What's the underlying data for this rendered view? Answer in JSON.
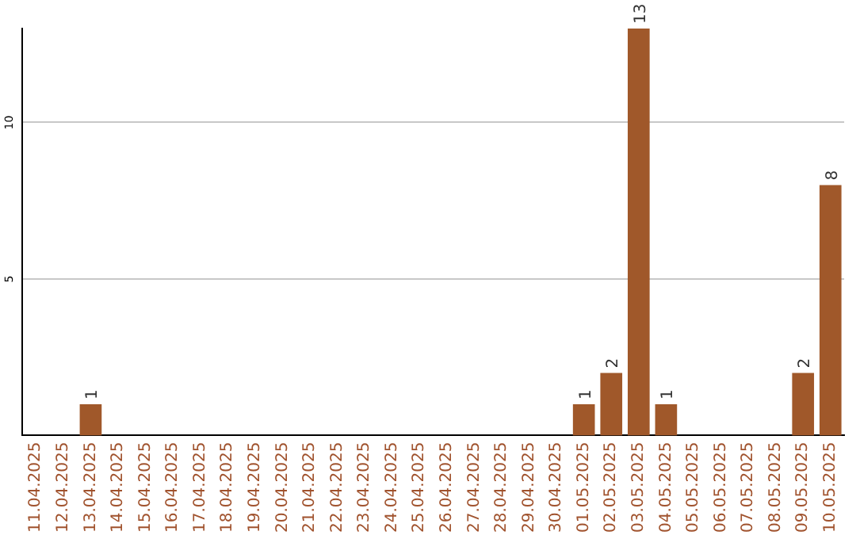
{
  "chart_data": {
    "type": "bar",
    "categories": [
      "11.04.2025",
      "12.04.2025",
      "13.04.2025",
      "14.04.2025",
      "15.04.2025",
      "16.04.2025",
      "17.04.2025",
      "18.04.2025",
      "19.04.2025",
      "20.04.2025",
      "21.04.2025",
      "22.04.2025",
      "23.04.2025",
      "24.04.2025",
      "25.04.2025",
      "26.04.2025",
      "27.04.2025",
      "28.04.2025",
      "29.04.2025",
      "30.04.2025",
      "01.05.2025",
      "02.05.2025",
      "03.05.2025",
      "04.05.2025",
      "05.05.2025",
      "06.05.2025",
      "07.05.2025",
      "08.05.2025",
      "09.05.2025",
      "10.05.2025"
    ],
    "values": [
      0,
      0,
      1,
      0,
      0,
      0,
      0,
      0,
      0,
      0,
      0,
      0,
      0,
      0,
      0,
      0,
      0,
      0,
      0,
      0,
      1,
      2,
      13,
      1,
      0,
      0,
      0,
      0,
      2,
      8
    ],
    "value_labels": [
      null,
      null,
      "1",
      null,
      null,
      null,
      null,
      null,
      null,
      null,
      null,
      null,
      null,
      null,
      null,
      null,
      null,
      null,
      null,
      null,
      "1",
      "2",
      "13",
      "1",
      null,
      null,
      null,
      null,
      "2",
      "8"
    ],
    "color": "#a0582a",
    "ylim": [
      0,
      13
    ],
    "yticks": [
      5,
      10
    ],
    "grid": "y",
    "legend": false
  }
}
